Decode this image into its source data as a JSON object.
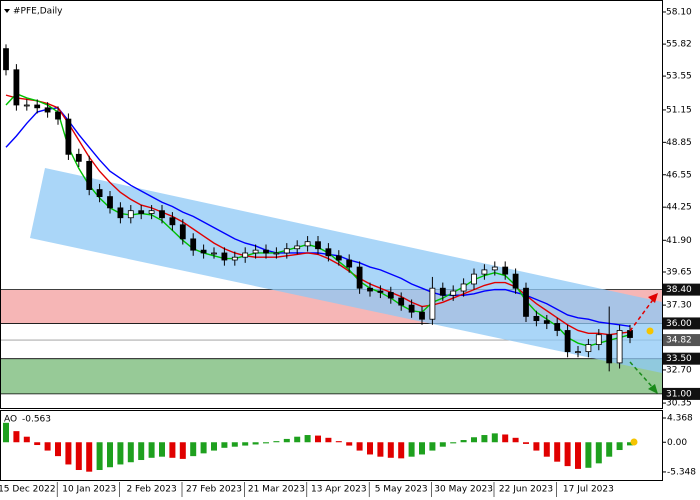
{
  "chart_data": {
    "type": "candlestick",
    "title": "#PFE,Daily",
    "categories": [
      null,
      null,
      "15 Dec 2022",
      null,
      null,
      null,
      null,
      null,
      "10 Jan 2023",
      null,
      null,
      null,
      null,
      null,
      "2 Feb 2023",
      null,
      null,
      null,
      null,
      null,
      "27 Feb 2023",
      null,
      null,
      null,
      null,
      null,
      "21 Mar 2023",
      null,
      null,
      null,
      null,
      null,
      "13 Apr 2023",
      null,
      null,
      null,
      null,
      null,
      "5 May 2023",
      null,
      null,
      null,
      null,
      null,
      "30 May 2023",
      null,
      null,
      null,
      null,
      null,
      "22 Jun 2023",
      null,
      null,
      null,
      null,
      null,
      "17 Jul 2023",
      null,
      null,
      null,
      null
    ],
    "candles": [
      [
        55.5,
        55.8,
        53.6,
        54.0
      ],
      [
        54.0,
        54.4,
        51.1,
        51.5
      ],
      [
        51.5,
        51.9,
        51.1,
        51.5
      ],
      [
        51.5,
        51.9,
        50.9,
        51.3
      ],
      [
        51.3,
        51.7,
        50.6,
        51.0
      ],
      [
        51.0,
        51.4,
        50.1,
        50.5
      ],
      [
        50.5,
        50.9,
        47.6,
        48.0
      ],
      [
        48.0,
        48.4,
        47.1,
        47.5
      ],
      [
        47.5,
        47.9,
        45.1,
        45.5
      ],
      [
        45.5,
        45.9,
        44.6,
        45.0
      ],
      [
        45.0,
        45.4,
        43.8,
        44.2
      ],
      [
        44.2,
        44.6,
        43.1,
        43.5
      ],
      [
        43.5,
        44.4,
        43.1,
        44.0
      ],
      [
        44.0,
        44.4,
        43.4,
        43.8
      ],
      [
        43.8,
        44.4,
        43.4,
        44.0
      ],
      [
        44.0,
        44.4,
        43.1,
        43.5
      ],
      [
        43.5,
        43.9,
        42.6,
        43.0
      ],
      [
        43.0,
        43.4,
        41.6,
        42.0
      ],
      [
        42.0,
        42.4,
        40.8,
        41.2
      ],
      [
        41.2,
        41.6,
        40.6,
        41.0
      ],
      [
        41.0,
        41.4,
        40.6,
        41.0
      ],
      [
        41.0,
        41.4,
        40.1,
        40.5
      ],
      [
        40.5,
        41.1,
        40.1,
        40.7
      ],
      [
        40.7,
        41.4,
        40.3,
        41.0
      ],
      [
        41.0,
        41.6,
        40.6,
        41.2
      ],
      [
        41.2,
        41.6,
        40.6,
        41.0
      ],
      [
        41.0,
        41.4,
        40.6,
        41.0
      ],
      [
        41.0,
        41.7,
        40.6,
        41.3
      ],
      [
        41.3,
        41.9,
        40.9,
        41.5
      ],
      [
        41.5,
        42.2,
        41.1,
        41.8
      ],
      [
        41.8,
        42.2,
        40.9,
        41.3
      ],
      [
        41.3,
        41.7,
        40.4,
        40.8
      ],
      [
        40.8,
        41.2,
        40.1,
        40.5
      ],
      [
        40.5,
        40.9,
        39.6,
        40.0
      ],
      [
        40.0,
        40.4,
        38.1,
        38.5
      ],
      [
        38.5,
        38.9,
        37.9,
        38.3
      ],
      [
        38.3,
        38.7,
        37.8,
        38.2
      ],
      [
        38.2,
        38.6,
        37.4,
        37.8
      ],
      [
        37.8,
        38.2,
        36.9,
        37.3
      ],
      [
        37.3,
        37.7,
        36.4,
        36.8
      ],
      [
        36.8,
        37.2,
        35.9,
        36.3
      ],
      [
        36.3,
        39.3,
        35.9,
        38.5
      ],
      [
        38.5,
        38.9,
        37.6,
        38.0
      ],
      [
        38.0,
        38.7,
        37.6,
        38.3
      ],
      [
        38.3,
        39.2,
        37.9,
        38.8
      ],
      [
        38.8,
        39.9,
        38.4,
        39.5
      ],
      [
        39.5,
        40.2,
        39.1,
        39.8
      ],
      [
        39.8,
        40.4,
        39.4,
        40.0
      ],
      [
        40.0,
        40.4,
        39.1,
        39.5
      ],
      [
        39.5,
        39.9,
        38.1,
        38.5
      ],
      [
        38.5,
        38.9,
        36.1,
        36.5
      ],
      [
        36.5,
        36.9,
        35.8,
        36.2
      ],
      [
        36.2,
        36.6,
        35.6,
        36.0
      ],
      [
        36.0,
        36.4,
        35.1,
        35.5
      ],
      [
        35.5,
        35.9,
        33.6,
        34.0
      ],
      [
        34.0,
        34.4,
        33.6,
        34.0
      ],
      [
        34.0,
        34.9,
        33.6,
        34.5
      ],
      [
        34.5,
        35.6,
        34.1,
        35.2
      ],
      [
        35.2,
        37.2,
        32.6,
        33.2
      ],
      [
        33.2,
        35.9,
        32.8,
        35.5
      ],
      [
        35.5,
        35.9,
        34.6,
        35.0
      ]
    ],
    "series": [
      {
        "color": "#0000ff",
        "values": [
          48.5,
          49.3,
          50.2,
          51.0,
          51.2,
          51.3,
          50.4,
          49.4,
          48.5,
          47.6,
          46.8,
          46.3,
          45.8,
          45.4,
          45.0,
          44.6,
          44.3,
          43.9,
          43.6,
          43.2,
          42.8,
          42.4,
          42.0,
          41.7,
          41.5,
          41.2,
          41.0,
          41.0,
          41.0,
          41.0,
          41.0,
          40.9,
          40.8,
          40.5,
          40.3,
          40.0,
          39.8,
          39.5,
          39.2,
          38.8,
          38.5,
          38.2,
          38.0,
          38.0,
          38.0,
          38.1,
          38.3,
          38.4,
          38.4,
          38.2,
          38.0,
          37.7,
          37.4,
          37.0,
          36.6,
          36.4,
          36.3,
          36.1,
          36.0,
          35.9,
          35.8
        ]
      },
      {
        "color": "#e00000",
        "values": [
          52.2,
          52.0,
          51.9,
          51.8,
          51.6,
          51.3,
          50.2,
          49.0,
          47.8,
          46.8,
          46.0,
          45.3,
          44.8,
          44.4,
          44.2,
          43.9,
          43.6,
          43.2,
          42.7,
          42.2,
          41.7,
          41.3,
          41.0,
          40.8,
          40.7,
          40.7,
          40.7,
          40.8,
          40.9,
          41.0,
          40.9,
          40.6,
          40.2,
          39.7,
          39.2,
          38.8,
          38.5,
          38.2,
          37.9,
          37.5,
          37.2,
          37.3,
          37.5,
          37.8,
          38.1,
          38.4,
          38.7,
          38.9,
          38.9,
          38.6,
          38.0,
          37.4,
          36.9,
          36.4,
          35.9,
          35.5,
          35.3,
          35.3,
          35.2,
          35.3,
          35.4
        ]
      },
      {
        "color": "#00c000",
        "values": [
          51.5,
          52.3,
          52.0,
          51.8,
          51.5,
          51.0,
          48.5,
          47.0,
          45.8,
          44.9,
          44.2,
          43.8,
          43.7,
          43.8,
          43.7,
          43.3,
          42.6,
          41.9,
          41.3,
          41.0,
          40.8,
          40.6,
          40.6,
          40.8,
          41.0,
          41.0,
          41.0,
          41.2,
          41.4,
          41.6,
          41.4,
          41.0,
          40.4,
          39.8,
          39.0,
          38.5,
          38.2,
          37.8,
          37.3,
          36.9,
          36.8,
          37.5,
          37.8,
          38.2,
          38.6,
          39.1,
          39.4,
          39.6,
          39.4,
          38.7,
          37.6,
          36.8,
          36.3,
          35.8,
          35.0,
          34.6,
          34.4,
          34.6,
          34.8,
          35.0,
          35.2
        ]
      }
    ],
    "ylim": [
      30.0,
      58.95
    ],
    "yticks": [
      {
        "value": 58.1,
        "label": "58.10"
      },
      55.82,
      53.55,
      51.15,
      48.85,
      46.55,
      44.25,
      {
        "value": 41.9,
        "label": "41.90"
      },
      39.65,
      {
        "value": 37.3,
        "label": "37.30"
      },
      {
        "value": 32.7,
        "label": "32.70"
      },
      30.35
    ],
    "levels": [
      {
        "value": 38.4,
        "label": "38.40"
      },
      {
        "value": 36,
        "label": "36.00"
      },
      34.82,
      {
        "value": 33.5,
        "label": "33.50"
      },
      {
        "value": 31,
        "label": "31.00"
      }
    ],
    "resistance_color": "#f4a4a4",
    "support_color": "#7dbd7d",
    "indicator": {
      "name": "AO",
      "up_color": "#1ea01e",
      "down_color": "#e00000",
      "values": [
        3.5,
        2.0,
        1.0,
        -0.5,
        -1.5,
        -2.5,
        -4.0,
        -5.0,
        -5.3,
        -5.0,
        -4.5,
        -4.0,
        -3.6,
        -3.2,
        -2.8,
        -2.6,
        -2.8,
        -3.0,
        -2.5,
        -2.0,
        -1.5,
        -1.0,
        -0.8,
        -0.6,
        -0.4,
        -0.2,
        0.2,
        0.6,
        1.0,
        1.3,
        1.2,
        0.8,
        0.2,
        -0.6,
        -1.5,
        -2.2,
        -2.6,
        -2.8,
        -2.9,
        -2.6,
        -2.2,
        -1.5,
        -0.8,
        -0.2,
        0.4,
        0.9,
        1.3,
        1.6,
        1.4,
        0.8,
        -0.3,
        -1.5,
        -2.6,
        -3.5,
        -4.3,
        -4.8,
        -4.6,
        -3.8,
        -2.6,
        -1.4,
        -0.563
      ],
      "ylim": [
        -6.8,
        5.45
      ],
      "yticks": [
        4.368,
        {
          "value": 0,
          "label": "0.00"
        },
        -5.348
      ]
    }
  }
}
